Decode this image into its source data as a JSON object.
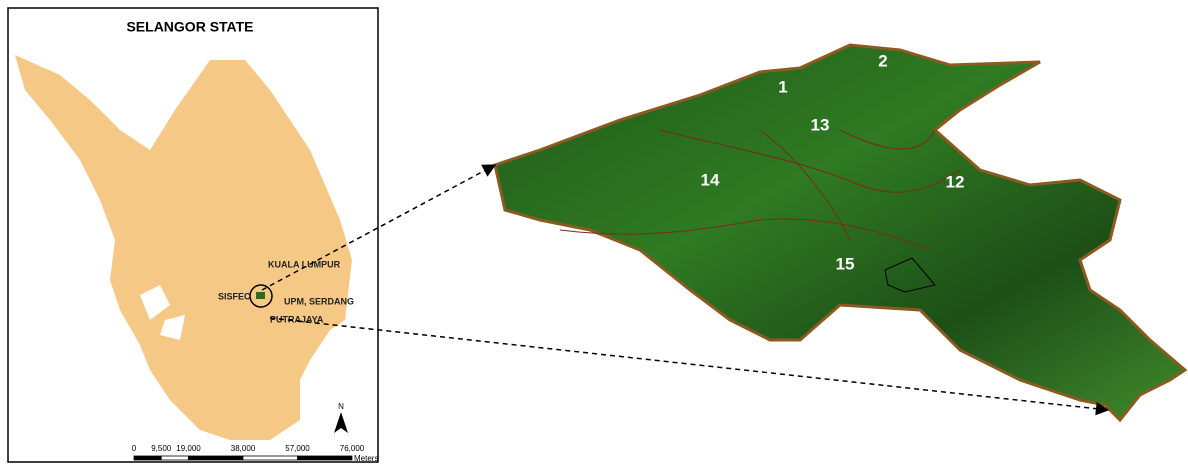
{
  "inset_map": {
    "title": "SELANGOR STATE",
    "places": [
      {
        "label": "KUALA LUMPUR"
      },
      {
        "label": "SISFEC"
      },
      {
        "label": "UPM, SERDANG"
      },
      {
        "label": "PUTRAJAYA"
      }
    ],
    "north": "N",
    "scale": {
      "ticks": [
        0,
        {
          "value": 9500,
          "label": "9,500"
        },
        {
          "value": 19000,
          "label": "19,000"
        },
        {
          "value": 38000,
          "label": "38,000"
        },
        {
          "value": 57000,
          "label": "57,000"
        },
        {
          "value": 76000,
          "label": "76,000"
        }
      ],
      "unit": "Meters"
    }
  },
  "terrain": {
    "compartments": [
      "1",
      "2",
      "13",
      "14",
      "12",
      "15"
    ]
  }
}
